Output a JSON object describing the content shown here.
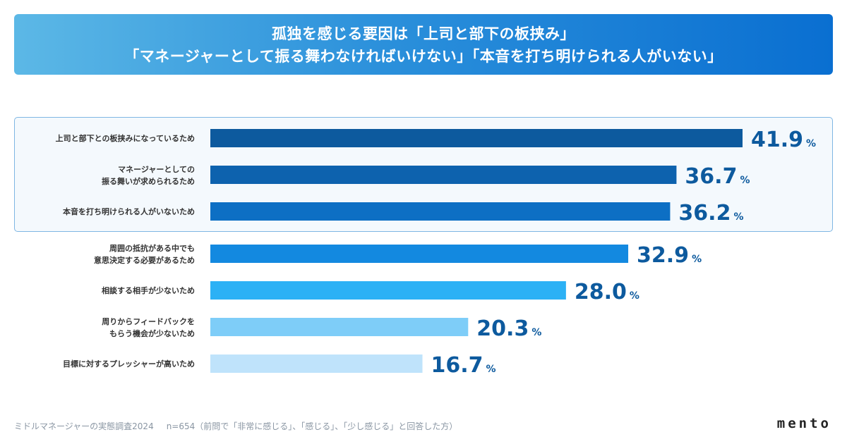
{
  "banner": {
    "line1": "孤独を感じる要因は「上司と部下の板挟み」",
    "line2": "「マネージャーとして振る舞わなければいけない」「本音を打ち明けられる人がいない」"
  },
  "chart_data": {
    "type": "bar",
    "orientation": "horizontal",
    "title": "",
    "xlabel": "",
    "ylabel": "",
    "unit": "%",
    "xlim": [
      0,
      100
    ],
    "grid": false,
    "legend": "none",
    "categories": [
      [
        "上司と部下との板挟みになっているため"
      ],
      [
        "マネージャーとしての",
        "振る舞いが求められるため"
      ],
      [
        "本音を打ち明けられる人がいないため"
      ],
      [
        "周囲の抵抗がある中でも",
        "意思決定する必要があるため"
      ],
      [
        "相談する相手が少ないため"
      ],
      [
        "周りからフィードバックを",
        "もらう機会が少ないため"
      ],
      [
        "目標に対するプレッシャーが高いため"
      ]
    ],
    "values": [
      41.9,
      36.7,
      36.2,
      32.9,
      28.0,
      20.3,
      16.7
    ],
    "value_labels": [
      "41.9",
      "36.7",
      "36.2",
      "32.9",
      "28.0",
      "20.3",
      "16.7"
    ],
    "colors": [
      "#0d5a9e",
      "#0d62ae",
      "#0d6fc4",
      "#1389e0",
      "#2cb1f5",
      "#7ecdf8",
      "#bfe3fb"
    ],
    "value_label_color": "#0d5a9e",
    "highlighted_count": 3
  },
  "footer": {
    "source": "ミドルマネージャーの実態調査2024",
    "note": "n=654（前問で「非常に感じる」、「感じる」、「少し感じる」と回答した方）"
  },
  "logo": {
    "text": "mento"
  }
}
